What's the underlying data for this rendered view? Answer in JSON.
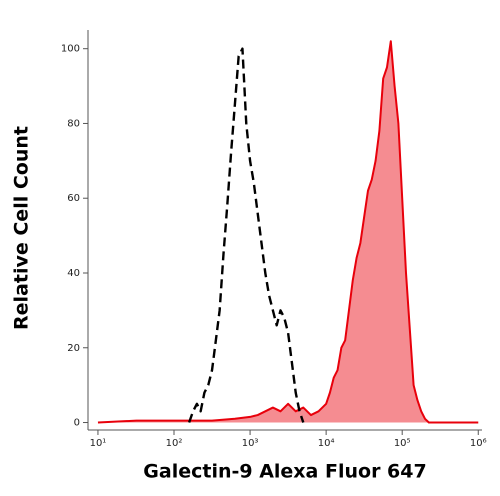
{
  "chart_data": {
    "type": "line",
    "x_label": "Galectin-9 Alexa Fluor 647",
    "y_label": "Relative Cell Count",
    "xscale": "log",
    "xlim": [
      7.4,
      1120000
    ],
    "ylim": [
      -2,
      105
    ],
    "xticks": [
      {
        "value": 10,
        "label": "10¹"
      },
      {
        "value": 100,
        "label": "10²"
      },
      {
        "value": 1000,
        "label": "10³"
      },
      {
        "value": 10000,
        "label": "10⁴"
      },
      {
        "value": 100000,
        "label": "10⁵"
      },
      {
        "value": 1000000,
        "label": "10⁶"
      }
    ],
    "yticks": [
      0,
      20,
      40,
      60,
      80,
      100
    ],
    "series": [
      {
        "color": "#000000",
        "dash": true,
        "fill": false,
        "x": [
          158,
          178,
          200,
          224,
          251,
          282,
          316,
          355,
          398,
          447,
          501,
          562,
          631,
          708,
          794,
          891,
          1000,
          1122,
          1259,
          1413,
          1585,
          1778,
          1995,
          2239,
          2512,
          2818,
          3162,
          3548,
          3981,
          4467,
          5012
        ],
        "values": [
          0,
          3,
          5,
          3,
          8,
          10,
          14,
          22,
          30,
          45,
          58,
          72,
          85,
          98,
          100,
          80,
          70,
          64,
          56,
          48,
          40,
          34,
          30,
          26,
          30,
          28,
          24,
          16,
          8,
          3,
          0
        ]
      },
      {
        "color": "#e8000b",
        "dash": false,
        "fill": true,
        "x": [
          10,
          32,
          100,
          316,
          631,
          1000,
          1259,
          1585,
          1995,
          2512,
          3162,
          3981,
          5012,
          6310,
          7943,
          10000,
          11220,
          12589,
          14125,
          15849,
          17783,
          19953,
          22387,
          25119,
          28184,
          31623,
          35481,
          39811,
          44668,
          50119,
          56234,
          63096,
          70795,
          79433,
          89125,
          100000,
          112202,
          125893,
          141254,
          158489,
          177828,
          199526,
          223872,
          316228,
          1000000
        ],
        "values": [
          0,
          0.5,
          0.5,
          0.5,
          1,
          1.5,
          2,
          3,
          4,
          3,
          5,
          3,
          4,
          2,
          3,
          5,
          8,
          12,
          14,
          20,
          22,
          30,
          38,
          44,
          48,
          55,
          62,
          65,
          70,
          78,
          92,
          95,
          102,
          90,
          80,
          60,
          40,
          25,
          10,
          6,
          3,
          1,
          0,
          0,
          0
        ]
      }
    ]
  }
}
